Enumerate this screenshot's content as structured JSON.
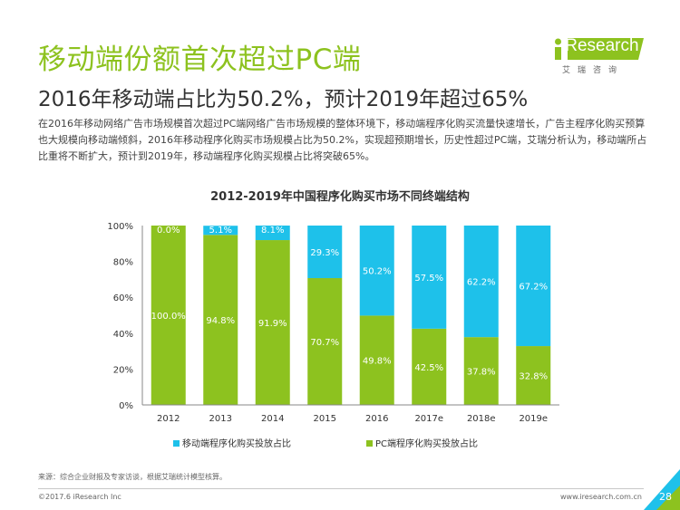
{
  "header": {
    "title": "移动端份额首次超过PC端",
    "subtitle": "2016年移动端占比为50.2%，预计2019年超过65%",
    "intro": "在2016年移动网络广告市场规模首次超过PC端网络广告市场规模的整体环境下，移动端程序化购买流量快速增长，广告主程序化购买预算也大规模向移动端倾斜，2016年移动程序化购买市场规模占比为50.2%，实现超预期增长，历史性超过PC端，艾瑞分析认为，移动端所占比重将不断扩大，预计到2019年，移动端程序化购买规模占比将突破65%。"
  },
  "logo": {
    "name": "iResearch",
    "sub": "艾瑞咨询"
  },
  "chart_data": {
    "type": "bar",
    "stacked": true,
    "title": "2012-2019年中国程序化购买市场不同终端结构",
    "categories": [
      "2012",
      "2013",
      "2014",
      "2015",
      "2016",
      "2017e",
      "2018e",
      "2019e"
    ],
    "series": [
      {
        "name": "PC端程序化购买投放占比",
        "color": "#8dc21f",
        "values": [
          100.0,
          94.8,
          91.9,
          70.7,
          49.8,
          42.5,
          37.8,
          32.8
        ]
      },
      {
        "name": "移动端程序化购买投放占比",
        "color": "#1ec1ea",
        "values": [
          0.0,
          5.1,
          8.1,
          29.3,
          50.2,
          57.5,
          62.2,
          67.2
        ]
      }
    ],
    "y_ticks": [
      "0%",
      "20%",
      "40%",
      "60%",
      "80%",
      "100%"
    ],
    "ylim": [
      0,
      100
    ],
    "grid": false,
    "legend": "bottom"
  },
  "footer": {
    "source": "来源：综合企业财报及专家访谈，根据艾瑞统计模型核算。",
    "copyright": "©2017.6 iResearch Inc",
    "url": "www.iresearch.com.cn",
    "page": "28"
  }
}
